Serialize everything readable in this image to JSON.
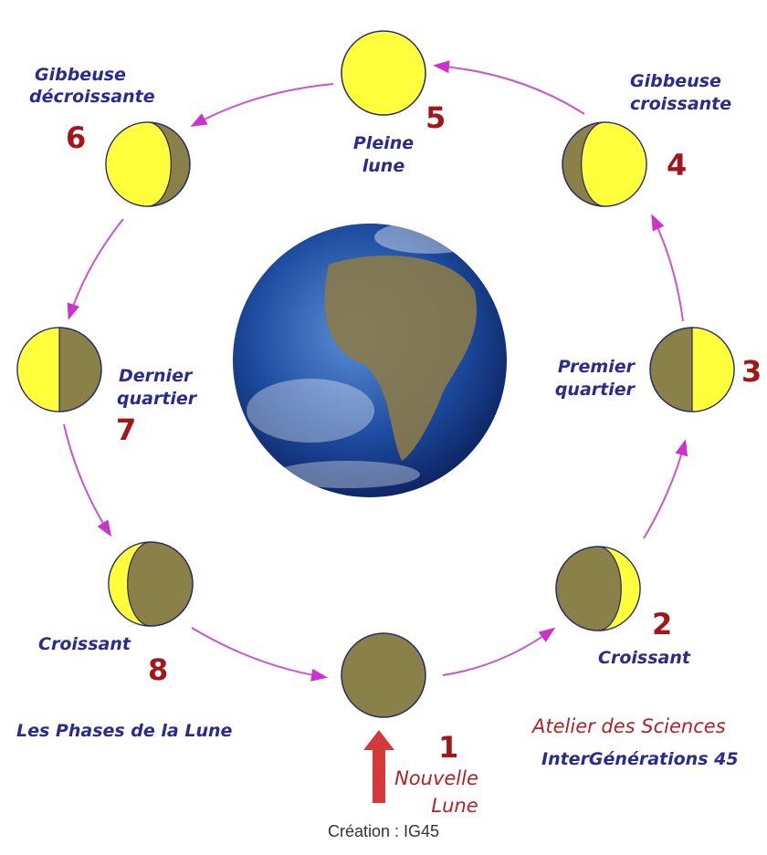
{
  "title": "Les Phases de la Lune",
  "credit": [
    "Atelier des Sciences",
    "InterGénérations 45"
  ],
  "footer": "Création : IG45",
  "phases": [
    {
      "number": "1",
      "label": [
        "Nouvelle",
        "Lune"
      ]
    },
    {
      "number": "2",
      "label": [
        "Croissant"
      ]
    },
    {
      "number": "3",
      "label": [
        "Premier",
        "quartier"
      ]
    },
    {
      "number": "4",
      "label": [
        "Gibbeuse",
        "croissante"
      ]
    },
    {
      "number": "5",
      "label": [
        "Pleine",
        "lune"
      ]
    },
    {
      "number": "6",
      "label": [
        "Gibbeuse",
        "décroissante"
      ]
    },
    {
      "number": "7",
      "label": [
        "Dernier",
        "quartier"
      ]
    },
    {
      "number": "8",
      "label": [
        "Croissant"
      ]
    }
  ]
}
